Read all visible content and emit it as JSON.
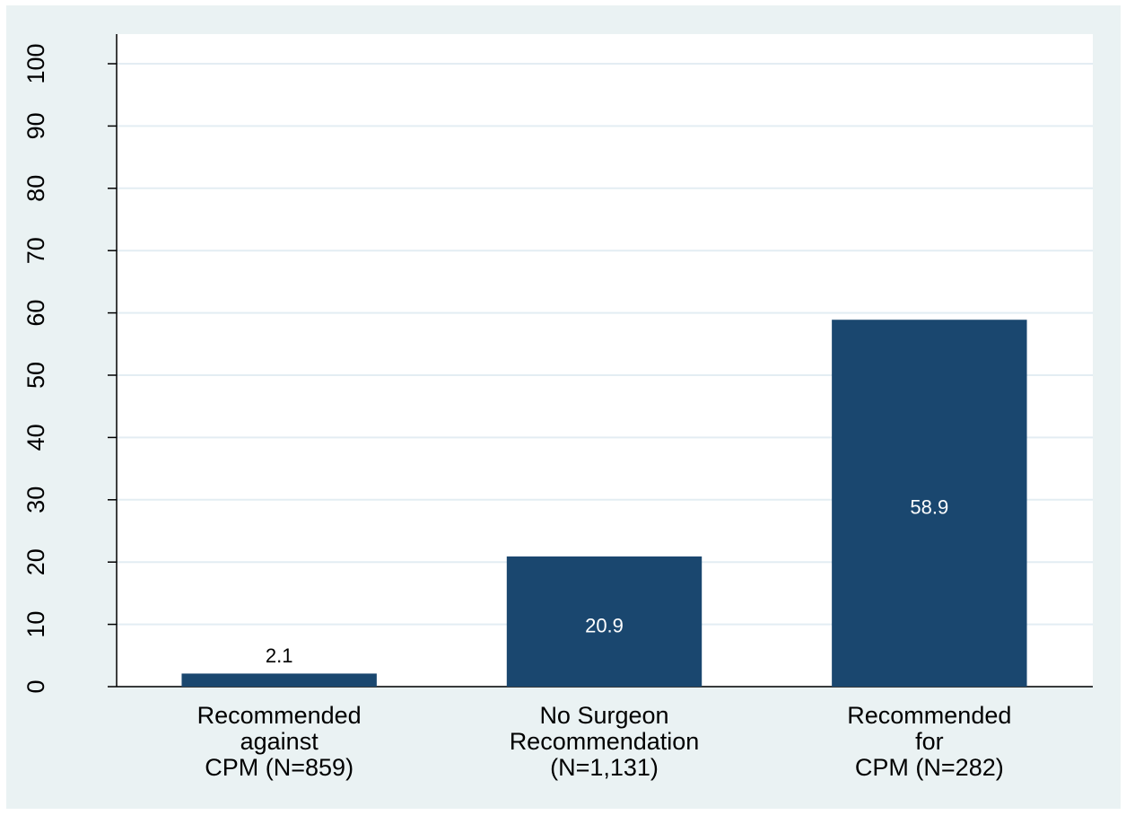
{
  "chart_data": {
    "type": "bar",
    "categories": [
      [
        "Recommended",
        "against",
        "CPM (N=859)"
      ],
      [
        "No Surgeon",
        "Recommendation",
        "(N=1,131)"
      ],
      [
        "Recommended",
        "for",
        "CPM (N=282)"
      ]
    ],
    "values": [
      2.1,
      20.9,
      58.9
    ],
    "color": "#1a476f",
    "ylim": [
      0,
      100
    ],
    "yticks": [
      0,
      10,
      20,
      30,
      40,
      50,
      60,
      70,
      80,
      90,
      100
    ],
    "grid": true
  }
}
